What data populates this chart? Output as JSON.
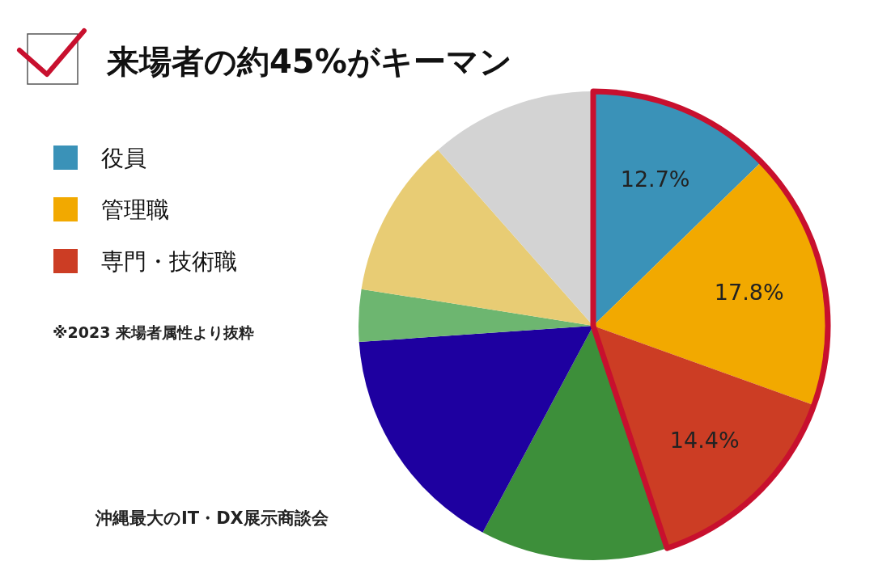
{
  "chart_data": {
    "type": "pie",
    "title": "来場者の約45%がキーマン",
    "categories": [
      "役員",
      "管理職",
      "専門・技術職",
      null,
      null,
      null,
      null,
      null
    ],
    "values": [
      12.7,
      17.8,
      14.4,
      12.9,
      16.1,
      3.6,
      11.0,
      11.5
    ],
    "colors": [
      "#3a92b8",
      "#f2a900",
      "#cc3d24",
      "#3d8f3a",
      "#1e00a0",
      "#6db670",
      "#e8cc74",
      "#d3d3d3"
    ],
    "value_labels": [
      "12.7%",
      "17.8%",
      "14.4%",
      null,
      null,
      null,
      null,
      null
    ],
    "legend": "left",
    "annotations": [
      "※2023 来場者属性より抜粋",
      "沖縄最大のIT・DX展示商談会"
    ]
  }
}
